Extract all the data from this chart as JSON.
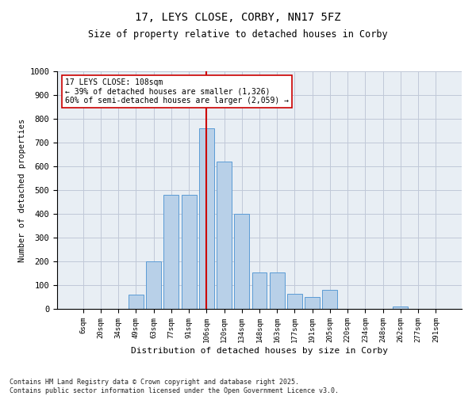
{
  "title1": "17, LEYS CLOSE, CORBY, NN17 5FZ",
  "title2": "Size of property relative to detached houses in Corby",
  "xlabel": "Distribution of detached houses by size in Corby",
  "ylabel": "Number of detached properties",
  "categories": [
    "6sqm",
    "20sqm",
    "34sqm",
    "49sqm",
    "63sqm",
    "77sqm",
    "91sqm",
    "106sqm",
    "120sqm",
    "134sqm",
    "148sqm",
    "163sqm",
    "177sqm",
    "191sqm",
    "205sqm",
    "220sqm",
    "234sqm",
    "248sqm",
    "262sqm",
    "277sqm",
    "291sqm"
  ],
  "values": [
    0,
    0,
    0,
    60,
    200,
    480,
    480,
    760,
    620,
    400,
    155,
    155,
    65,
    50,
    80,
    0,
    0,
    0,
    10,
    0,
    0
  ],
  "bar_color": "#b8d0e8",
  "bar_edge_color": "#5b9bd5",
  "vline_x": 7,
  "vline_color": "#cc0000",
  "annotation_text": "17 LEYS CLOSE: 108sqm\n← 39% of detached houses are smaller (1,326)\n60% of semi-detached houses are larger (2,059) →",
  "annotation_box_color": "#cc0000",
  "ylim": [
    0,
    1000
  ],
  "yticks": [
    0,
    100,
    200,
    300,
    400,
    500,
    600,
    700,
    800,
    900,
    1000
  ],
  "grid_color": "#c0c8d8",
  "bg_color": "#e8eef4",
  "footnote": "Contains HM Land Registry data © Crown copyright and database right 2025.\nContains public sector information licensed under the Open Government Licence v3.0."
}
